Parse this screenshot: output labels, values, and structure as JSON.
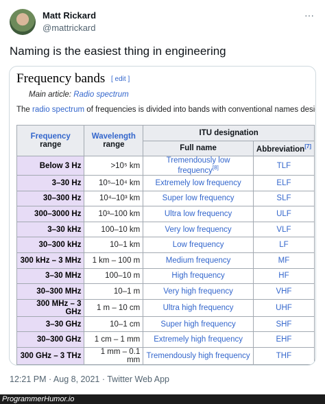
{
  "tweet": {
    "name": "Matt Rickard",
    "handle": "@mattrickard",
    "menu": "···",
    "text": "Naming is the easiest thing in engineering",
    "footer": "12:21 PM · Aug 8, 2021 · Twitter Web App"
  },
  "article": {
    "title": "Frequency bands",
    "edit": "[ edit ]",
    "main_label": "Main article:",
    "main_link": "Radio spectrum",
    "intro_pre": "The",
    "intro_link": "radio spectrum",
    "intro_post": "of frequencies is divided into bands with conventional names designa"
  },
  "table": {
    "header": {
      "frequency_link": "Frequency",
      "frequency_rest": "range",
      "wavelength_link": "Wavelength",
      "wavelength_rest": "range",
      "itu": "ITU designation",
      "full_name": "Full name",
      "abbreviation": "Abbreviation",
      "abbreviation_note": "[7]"
    },
    "rows": [
      {
        "frequency": "Below 3 Hz",
        "wavelength": ">10⁵ km",
        "full_name": "Tremendously low frequency",
        "note": "[8]",
        "abbr": "TLF"
      },
      {
        "frequency": "3–30 Hz",
        "wavelength": "10⁵–10⁴ km",
        "full_name": "Extremely low frequency",
        "abbr": "ELF"
      },
      {
        "frequency": "30–300 Hz",
        "wavelength": "10⁴–10³ km",
        "full_name": "Super low frequency",
        "abbr": "SLF"
      },
      {
        "frequency": "300–3000 Hz",
        "wavelength": "10³–100 km",
        "full_name": "Ultra low frequency",
        "abbr": "ULF"
      },
      {
        "frequency": "3–30 kHz",
        "wavelength": "100–10 km",
        "full_name": "Very low frequency",
        "abbr": "VLF"
      },
      {
        "frequency": "30–300 kHz",
        "wavelength": "10–1 km",
        "full_name": "Low frequency",
        "abbr": "LF"
      },
      {
        "frequency": "300 kHz – 3 MHz",
        "wavelength": "1 km – 100 m",
        "full_name": "Medium frequency",
        "abbr": "MF"
      },
      {
        "frequency": "3–30 MHz",
        "wavelength": "100–10 m",
        "full_name": "High frequency",
        "abbr": "HF"
      },
      {
        "frequency": "30–300 MHz",
        "wavelength": "10–1 m",
        "full_name": "Very high frequency",
        "abbr": "VHF"
      },
      {
        "frequency": "300 MHz – 3 GHz",
        "wavelength": "1 m – 10 cm",
        "full_name": "Ultra high frequency",
        "abbr": "UHF"
      },
      {
        "frequency": "3–30 GHz",
        "wavelength": "10–1 cm",
        "full_name": "Super high frequency",
        "abbr": "SHF"
      },
      {
        "frequency": "30–300 GHz",
        "wavelength": "1 cm – 1 mm",
        "full_name": "Extremely high frequency",
        "abbr": "EHF"
      },
      {
        "frequency": "300 GHz – 3 THz",
        "wavelength": "1 mm – 0.1 mm",
        "full_name": "Tremendously high frequency",
        "abbr": "THF"
      }
    ]
  },
  "watermark": "ProgrammerHumor.io"
}
